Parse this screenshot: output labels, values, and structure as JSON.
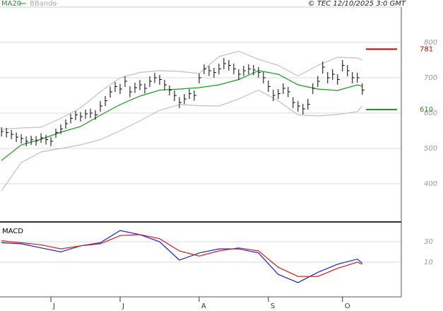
{
  "header": {
    "copyright": "© TEC 12/10/2025 3:0 GMT"
  },
  "chart_data": [
    {
      "type": "ohlc",
      "x": [
        0,
        1,
        2,
        3,
        4,
        5,
        6,
        7,
        8,
        9,
        10,
        11,
        12,
        13,
        14,
        15,
        16,
        17,
        18,
        19,
        20,
        21,
        22,
        23,
        24,
        25,
        26,
        27,
        28,
        29,
        30,
        31,
        32,
        33,
        34,
        35,
        36,
        37,
        38,
        39,
        40,
        41,
        42,
        43,
        44,
        45,
        46,
        47,
        48,
        49,
        50,
        51,
        52,
        53,
        54,
        55,
        56,
        57,
        58,
        59,
        60,
        61,
        62,
        63,
        64,
        65,
        66,
        67,
        68,
        69,
        70,
        71,
        72,
        73
      ],
      "high": [
        560,
        558,
        552,
        545,
        540,
        534,
        536,
        535,
        543,
        538,
        532,
        556,
        568,
        582,
        598,
        606,
        603,
        610,
        612,
        608,
        634,
        648,
        675,
        688,
        682,
        704,
        676,
        686,
        694,
        684,
        704,
        714,
        708,
        694,
        678,
        664,
        645,
        654,
        668,
        664,
        712,
        738,
        734,
        728,
        740,
        756,
        750,
        740,
        724,
        734,
        738,
        736,
        730,
        716,
        692,
        666,
        668,
        684,
        674,
        645,
        634,
        626,
        640,
        684,
        705,
        746,
        716,
        724,
        710,
        750,
        736,
        716,
        714,
        684
      ],
      "low": [
        534,
        531,
        526,
        518,
        514,
        506,
        510,
        508,
        516,
        511,
        506,
        530,
        541,
        556,
        571,
        580,
        576,
        584,
        586,
        581,
        604,
        620,
        644,
        660,
        654,
        674,
        645,
        657,
        665,
        655,
        674,
        685,
        680,
        665,
        650,
        634,
        614,
        625,
        640,
        635,
        684,
        710,
        705,
        700,
        710,
        724,
        720,
        710,
        694,
        705,
        710,
        707,
        700,
        684,
        660,
        634,
        640,
        654,
        645,
        614,
        604,
        596,
        610,
        654,
        674,
        712,
        684,
        694,
        680,
        718,
        704,
        684,
        686,
        652
      ],
      "close": [
        548,
        545,
        540,
        532,
        528,
        520,
        525,
        522,
        530,
        525,
        520,
        545,
        555,
        570,
        585,
        595,
        590,
        598,
        600,
        595,
        620,
        635,
        660,
        675,
        668,
        690,
        660,
        672,
        680,
        670,
        690,
        700,
        695,
        680,
        665,
        650,
        630,
        640,
        655,
        650,
        700,
        725,
        720,
        715,
        725,
        740,
        735,
        725,
        710,
        720,
        725,
        722,
        715,
        700,
        675,
        650,
        655,
        670,
        660,
        630,
        620,
        612,
        625,
        670,
        690,
        730,
        700,
        710,
        695,
        735,
        720,
        700,
        700,
        665
      ],
      "bar_color": "#000000",
      "series": [
        {
          "name": "MA20",
          "color": "#1a9c1a",
          "x": [
            0,
            4,
            8,
            12,
            16,
            20,
            24,
            28,
            32,
            36,
            40,
            44,
            48,
            52,
            56,
            60,
            64,
            68,
            72,
            73
          ],
          "values": [
            466,
            510,
            526,
            546,
            562,
            594,
            624,
            648,
            665,
            668,
            672,
            680,
            695,
            720,
            710,
            680,
            668,
            664,
            680,
            676
          ]
        },
        {
          "name": "BBands",
          "color": "#c0c0c0",
          "x": [
            0,
            4,
            8,
            12,
            16,
            20,
            24,
            28,
            32,
            36,
            40,
            44,
            48,
            52,
            56,
            60,
            64,
            68,
            72,
            73
          ],
          "upper": [
            554,
            558,
            560,
            585,
            615,
            660,
            700,
            715,
            720,
            718,
            712,
            760,
            775,
            752,
            735,
            705,
            735,
            758,
            756,
            750
          ],
          "lower": [
            380,
            460,
            490,
            500,
            510,
            525,
            550,
            578,
            608,
            624,
            621,
            620,
            640,
            665,
            635,
            595,
            592,
            596,
            604,
            620
          ]
        }
      ],
      "levels": [
        {
          "value": 781,
          "color": "#c00000"
        },
        {
          "value": 610,
          "color": "#1a9c1a"
        }
      ],
      "xlim": [
        -0.3,
        80.9
      ],
      "ylim": [
        300,
        900
      ],
      "yticks": [
        400,
        500,
        600,
        700,
        800
      ],
      "grid": true
    },
    {
      "type": "line",
      "title": "MACD",
      "series": [
        {
          "name": "MACD",
          "color": "#1f1fd0",
          "x": [
            0,
            4,
            8,
            12,
            16,
            20,
            24,
            28,
            32,
            36,
            40,
            44,
            48,
            52,
            56,
            60,
            64,
            68,
            72,
            73
          ],
          "values": [
            29,
            28,
            24,
            20,
            26,
            29,
            41,
            37,
            30,
            12,
            19,
            23,
            23,
            19,
            -2,
            -10,
            0,
            8,
            13,
            9
          ]
        },
        {
          "name": "Signal",
          "color": "#d01f1f",
          "x": [
            0,
            4,
            8,
            12,
            16,
            20,
            24,
            28,
            32,
            36,
            40,
            44,
            48,
            52,
            56,
            60,
            64,
            68,
            72,
            73
          ],
          "values": [
            31,
            29,
            27,
            23,
            26,
            28,
            36,
            37,
            33,
            21,
            16,
            21,
            24,
            21,
            5,
            -4,
            -4,
            4,
            10,
            8
          ]
        }
      ],
      "xlim": [
        -0.3,
        80.9
      ],
      "ylim": [
        -24,
        48
      ],
      "yticks": [
        10,
        30
      ],
      "grid": true,
      "xticks": [
        {
          "value": 10,
          "label": "J"
        },
        {
          "value": 24,
          "label": "J"
        },
        {
          "value": 40,
          "label": "A"
        },
        {
          "value": 54,
          "label": "S"
        },
        {
          "value": 69,
          "label": "O"
        }
      ]
    }
  ]
}
